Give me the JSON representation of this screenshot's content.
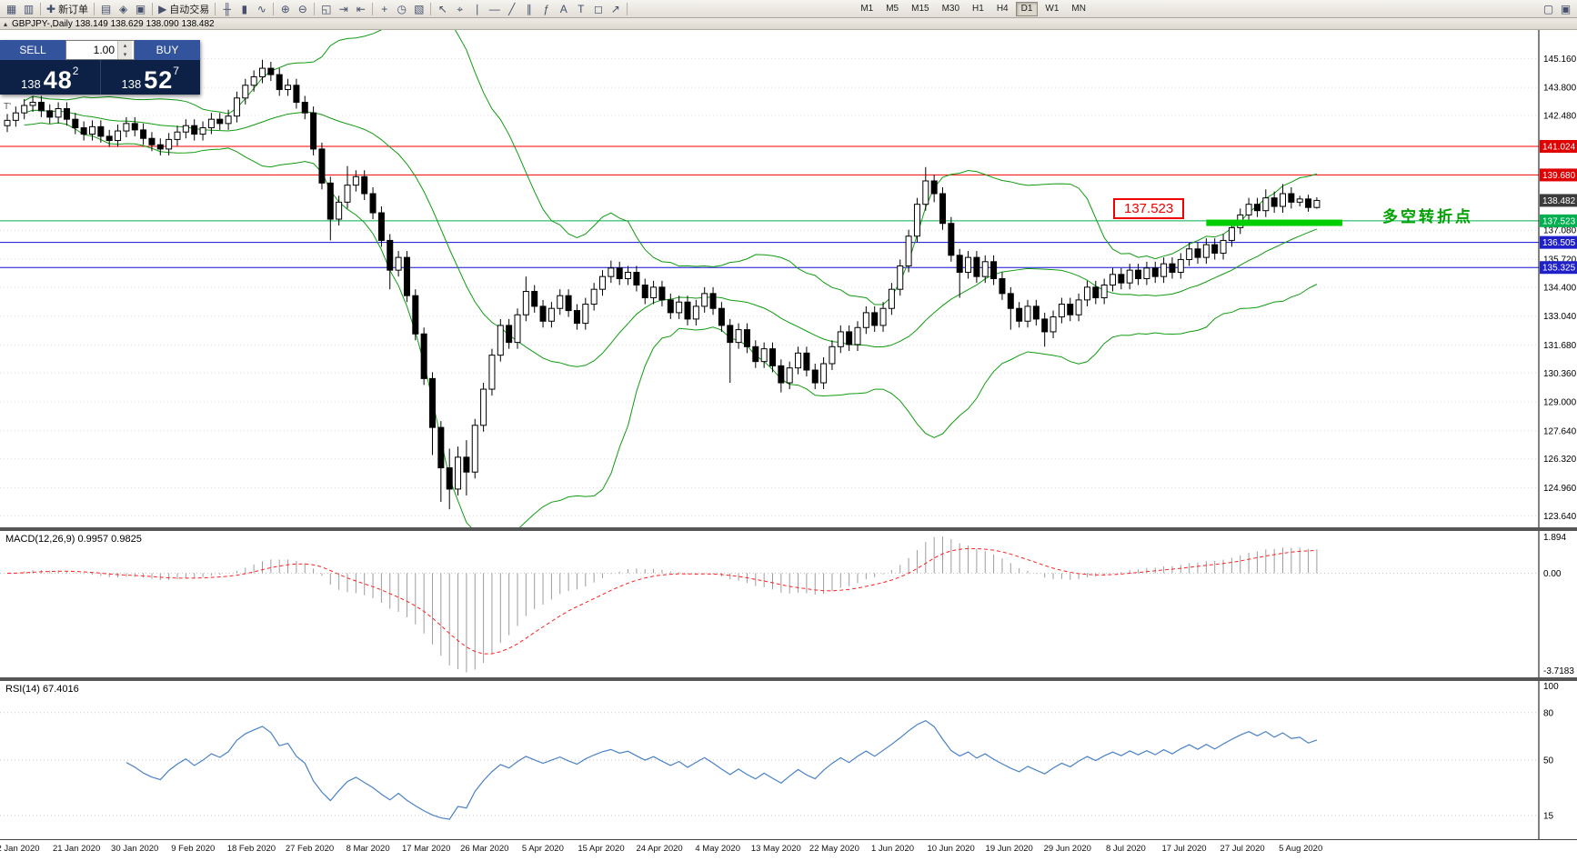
{
  "toolbar": {
    "groups": [
      {
        "items": [
          {
            "name": "new-chart-icon",
            "glyph": "▦"
          },
          {
            "name": "profiles-icon",
            "glyph": "▥"
          }
        ]
      },
      {
        "items": [
          {
            "name": "new-order-button",
            "glyph": "✚",
            "label": "新订单"
          }
        ]
      },
      {
        "items": [
          {
            "name": "market-watch-icon",
            "glyph": "▤"
          },
          {
            "name": "navigator-icon",
            "glyph": "◈"
          },
          {
            "name": "terminal-icon",
            "glyph": "▣"
          }
        ]
      },
      {
        "items": [
          {
            "name": "autotrade-button",
            "glyph": "▶",
            "label": "自动交易"
          }
        ]
      },
      {
        "items": [
          {
            "name": "bars-icon",
            "glyph": "╫"
          },
          {
            "name": "candles-icon",
            "glyph": "▮"
          },
          {
            "name": "line-chart-icon",
            "glyph": "∿"
          }
        ]
      },
      {
        "items": [
          {
            "name": "zoom-in-icon",
            "glyph": "⊕"
          },
          {
            "name": "zoom-out-icon",
            "glyph": "⊖"
          }
        ]
      },
      {
        "items": [
          {
            "name": "tile-windows-icon",
            "glyph": "◱"
          },
          {
            "name": "auto-scroll-icon",
            "glyph": "⇥"
          },
          {
            "name": "chart-shift-icon",
            "glyph": "⇤"
          }
        ]
      },
      {
        "items": [
          {
            "name": "indicators-icon",
            "glyph": "+"
          },
          {
            "name": "periods-icon",
            "glyph": "◷"
          },
          {
            "name": "templates-icon",
            "glyph": "▧"
          }
        ]
      },
      {
        "items": [
          {
            "name": "cursor-icon",
            "glyph": "↖"
          },
          {
            "name": "crosshair-icon",
            "glyph": "⌖"
          },
          {
            "name": "vline-icon",
            "glyph": "∣"
          },
          {
            "name": "hline-icon",
            "glyph": "—"
          },
          {
            "name": "trendline-icon",
            "glyph": "╱"
          },
          {
            "name": "channel-icon",
            "glyph": "∥"
          },
          {
            "name": "fibonacci-icon",
            "glyph": "ƒ"
          },
          {
            "name": "text-icon",
            "glyph": "A"
          },
          {
            "name": "label-icon",
            "glyph": "T"
          },
          {
            "name": "shapes-icon",
            "glyph": "◻"
          },
          {
            "name": "arrows-icon",
            "glyph": "↗"
          }
        ]
      }
    ],
    "timeframes": [
      "M1",
      "M5",
      "M15",
      "M30",
      "H1",
      "H4",
      "D1",
      "W1",
      "MN"
    ],
    "active_timeframe": "D1",
    "right_items": [
      {
        "name": "new-window-icon",
        "glyph": "▢"
      },
      {
        "name": "screenshot-icon",
        "glyph": "▣"
      }
    ]
  },
  "chart": {
    "collapse_icon": "▴",
    "title_text": "GBPJPY-,Daily  138.149 138.629 138.090 138.482",
    "one_click_label": "T'"
  },
  "trade_panel": {
    "sell_label": "SELL",
    "buy_label": "BUY",
    "volume": "1.00",
    "spin_up": "▴",
    "spin_down": "▾",
    "sell_price_main": "138",
    "sell_price_pips": "48",
    "sell_price_point": "2",
    "buy_price_main": "138",
    "buy_price_pips": "52",
    "buy_price_point": "7"
  },
  "annotations": {
    "price_box_label": "137.523",
    "turning_point_text": "多空转折点",
    "thick_line": {
      "from_bar": 141,
      "to_bar": 157,
      "value": 137.45,
      "color": "#00ce00"
    }
  },
  "colors": {
    "bollinger": "#119b11",
    "rsi_line": "#4a82c4",
    "macd_histogram": "#9c9c9c",
    "macd_signal": "#ff2020",
    "grid": "#dcdcdc",
    "bull_body": "#ffffff",
    "bear_body": "#000000"
  },
  "chart_data": {
    "type": "candlestick",
    "symbol": "GBPJPY-",
    "timeframe": "Daily",
    "ohlc_current": [
      138.149,
      138.629,
      138.09,
      138.482
    ],
    "ylim": [
      123.64,
      145.16
    ],
    "y_ticks": [
      145.16,
      143.8,
      142.48,
      137.08,
      135.72,
      134.4,
      133.04,
      131.68,
      130.36,
      129.0,
      127.64,
      126.32,
      124.96,
      123.64
    ],
    "levels": [
      {
        "label": "141.024",
        "value": 141.024,
        "line_color": "#f40000",
        "badge_color": "#e00000",
        "line": true
      },
      {
        "label": "139.680",
        "value": 139.68,
        "line_color": "#f40000",
        "badge_color": "#e00000",
        "line": true
      },
      {
        "label": "138.482",
        "value": 138.482,
        "line_color": null,
        "badge_color": "#3c3c3c",
        "line": false
      },
      {
        "label": "137.523",
        "value": 137.523,
        "line_color": "#00b050",
        "badge_color": "#00b050",
        "line": true
      },
      {
        "label": "136.505",
        "value": 136.505,
        "line_color": "#1111d0",
        "badge_color": "#2020c8",
        "line": true
      },
      {
        "label": "135.325",
        "value": 135.325,
        "line_color": "#1111d0",
        "badge_color": "#2020c8",
        "line": true
      }
    ],
    "x_labels": [
      "2 Jan 2020",
      "21 Jan 2020",
      "30 Jan 2020",
      "9 Feb 2020",
      "18 Feb 2020",
      "27 Feb 2020",
      "8 Mar 2020",
      "17 Mar 2020",
      "26 Mar 2020",
      "5 Apr 2020",
      "15 Apr 2020",
      "24 Apr 2020",
      "4 May 2020",
      "13 May 2020",
      "22 May 2020",
      "1 Jun 2020",
      "10 Jun 2020",
      "19 Jun 2020",
      "29 Jun 2020",
      "8 Jul 2020",
      "17 Jul 2020",
      "27 Jul 2020",
      "5 Aug 2020"
    ],
    "overlays": {
      "bollinger_period": 20,
      "bollinger_deviation": 2
    },
    "subcharts": [
      {
        "type": "macd",
        "label": "MACD(12,26,9) 0.9957 0.9825",
        "params": [
          12,
          26,
          9
        ],
        "values": [
          0.9957,
          0.9825
        ],
        "y_labels": [
          "1.894",
          "0.00",
          "-3.7183"
        ]
      },
      {
        "type": "rsi",
        "label": "RSI(14) 67.4016",
        "period": 14,
        "value": 67.4016,
        "levels": [
          100,
          80,
          50,
          15
        ]
      }
    ],
    "candles": [
      [
        142.0,
        142.55,
        141.7,
        142.25
      ],
      [
        142.25,
        142.9,
        141.95,
        142.6
      ],
      [
        142.6,
        143.25,
        142.3,
        142.95
      ],
      [
        142.95,
        143.4,
        142.65,
        143.1
      ],
      [
        143.1,
        143.4,
        142.4,
        142.7
      ],
      [
        142.7,
        143.0,
        142.1,
        142.4
      ],
      [
        142.4,
        143.1,
        142.1,
        142.8
      ],
      [
        142.8,
        143.1,
        142.0,
        142.3
      ],
      [
        142.3,
        142.6,
        141.6,
        141.9
      ],
      [
        141.9,
        142.2,
        141.3,
        141.6
      ],
      [
        141.6,
        142.25,
        141.3,
        141.95
      ],
      [
        141.95,
        142.25,
        141.2,
        141.5
      ],
      [
        141.5,
        141.8,
        141.0,
        141.3
      ],
      [
        141.3,
        142.05,
        141.0,
        141.75
      ],
      [
        141.75,
        142.4,
        141.45,
        142.1
      ],
      [
        142.1,
        142.4,
        141.5,
        141.8
      ],
      [
        141.8,
        142.1,
        141.1,
        141.4
      ],
      [
        141.4,
        141.7,
        140.8,
        141.1
      ],
      [
        141.1,
        141.4,
        140.6,
        140.9
      ],
      [
        140.9,
        141.65,
        140.6,
        141.35
      ],
      [
        141.35,
        142.0,
        141.05,
        141.7
      ],
      [
        141.7,
        142.3,
        141.4,
        142.0
      ],
      [
        142.0,
        142.3,
        141.3,
        141.6
      ],
      [
        141.6,
        142.2,
        141.3,
        141.9
      ],
      [
        141.9,
        142.6,
        141.6,
        142.3
      ],
      [
        142.3,
        142.6,
        141.8,
        142.1
      ],
      [
        142.1,
        142.75,
        141.8,
        142.45
      ],
      [
        142.45,
        143.6,
        142.15,
        143.3
      ],
      [
        143.3,
        144.2,
        143.0,
        143.9
      ],
      [
        143.9,
        144.6,
        143.6,
        144.3
      ],
      [
        144.3,
        145.1,
        144.0,
        144.7
      ],
      [
        144.7,
        145.0,
        144.1,
        144.4
      ],
      [
        144.4,
        144.7,
        143.4,
        143.7
      ],
      [
        143.7,
        144.2,
        143.4,
        143.9
      ],
      [
        143.9,
        144.2,
        142.8,
        143.1
      ],
      [
        143.1,
        143.4,
        142.3,
        142.6
      ],
      [
        142.6,
        142.9,
        140.6,
        140.9
      ],
      [
        140.9,
        141.2,
        139.0,
        139.3
      ],
      [
        139.3,
        139.6,
        136.6,
        137.6
      ],
      [
        137.6,
        138.7,
        137.3,
        138.4
      ],
      [
        138.4,
        140.1,
        138.1,
        139.2
      ],
      [
        139.2,
        139.9,
        138.9,
        139.6
      ],
      [
        139.6,
        139.9,
        138.5,
        138.8
      ],
      [
        138.8,
        139.1,
        137.6,
        137.9
      ],
      [
        137.9,
        138.2,
        136.3,
        136.6
      ],
      [
        136.6,
        136.9,
        134.3,
        135.2
      ],
      [
        135.2,
        136.1,
        134.9,
        135.8
      ],
      [
        135.8,
        136.1,
        133.7,
        134.0
      ],
      [
        134.0,
        134.3,
        131.9,
        132.2
      ],
      [
        132.2,
        132.5,
        129.8,
        130.1
      ],
      [
        130.1,
        130.4,
        126.5,
        127.8
      ],
      [
        127.8,
        128.1,
        124.3,
        125.9
      ],
      [
        125.9,
        126.8,
        123.95,
        124.9
      ],
      [
        124.9,
        126.9,
        124.6,
        126.4
      ],
      [
        126.4,
        127.2,
        124.6,
        125.7
      ],
      [
        125.7,
        128.2,
        125.4,
        127.9
      ],
      [
        127.9,
        129.9,
        127.6,
        129.6
      ],
      [
        129.6,
        131.5,
        129.3,
        131.2
      ],
      [
        131.2,
        132.9,
        130.9,
        132.6
      ],
      [
        132.6,
        132.9,
        131.5,
        131.8
      ],
      [
        131.8,
        133.4,
        131.5,
        133.1
      ],
      [
        133.1,
        134.9,
        132.8,
        134.2
      ],
      [
        134.2,
        134.5,
        133.2,
        133.5
      ],
      [
        133.5,
        133.8,
        132.5,
        132.8
      ],
      [
        132.8,
        133.7,
        132.5,
        133.4
      ],
      [
        133.4,
        134.3,
        133.1,
        134.0
      ],
      [
        134.0,
        134.3,
        133.0,
        133.3
      ],
      [
        133.3,
        133.6,
        132.4,
        132.7
      ],
      [
        132.7,
        133.9,
        132.4,
        133.6
      ],
      [
        133.6,
        134.6,
        133.3,
        134.3
      ],
      [
        134.3,
        135.2,
        134.0,
        134.9
      ],
      [
        134.9,
        135.65,
        134.6,
        135.3
      ],
      [
        135.3,
        135.6,
        134.5,
        134.8
      ],
      [
        134.8,
        135.4,
        134.5,
        135.1
      ],
      [
        135.1,
        135.4,
        134.2,
        134.5
      ],
      [
        134.5,
        134.8,
        133.6,
        133.9
      ],
      [
        133.9,
        134.7,
        133.6,
        134.4
      ],
      [
        134.4,
        134.7,
        133.5,
        133.8
      ],
      [
        133.8,
        134.1,
        132.9,
        133.2
      ],
      [
        133.2,
        134.0,
        132.9,
        133.7
      ],
      [
        133.7,
        134.0,
        132.6,
        132.9
      ],
      [
        132.9,
        133.8,
        132.6,
        133.5
      ],
      [
        133.5,
        134.4,
        133.2,
        134.1
      ],
      [
        134.1,
        134.4,
        133.1,
        133.4
      ],
      [
        133.4,
        133.7,
        132.3,
        132.6
      ],
      [
        132.6,
        132.9,
        129.9,
        131.8
      ],
      [
        131.8,
        132.7,
        131.5,
        132.4
      ],
      [
        132.4,
        132.7,
        131.3,
        131.6
      ],
      [
        131.6,
        131.9,
        130.6,
        130.9
      ],
      [
        130.9,
        131.8,
        130.6,
        131.5
      ],
      [
        131.5,
        131.8,
        130.4,
        130.7
      ],
      [
        130.7,
        131.0,
        129.45,
        129.9
      ],
      [
        129.9,
        130.9,
        129.6,
        130.6
      ],
      [
        130.6,
        131.6,
        130.3,
        131.3
      ],
      [
        131.3,
        131.6,
        130.2,
        130.5
      ],
      [
        130.5,
        130.8,
        129.6,
        129.9
      ],
      [
        129.9,
        131.1,
        129.6,
        130.8
      ],
      [
        130.8,
        131.9,
        130.5,
        131.6
      ],
      [
        131.6,
        132.6,
        131.3,
        132.3
      ],
      [
        132.3,
        132.6,
        131.4,
        131.7
      ],
      [
        131.7,
        132.8,
        131.4,
        132.5
      ],
      [
        132.5,
        133.5,
        132.2,
        133.2
      ],
      [
        133.2,
        133.5,
        132.3,
        132.6
      ],
      [
        132.6,
        133.7,
        132.3,
        133.4
      ],
      [
        133.4,
        134.6,
        133.1,
        134.3
      ],
      [
        134.3,
        135.7,
        134.0,
        135.4
      ],
      [
        135.4,
        137.1,
        135.1,
        136.8
      ],
      [
        136.8,
        138.6,
        136.5,
        138.3
      ],
      [
        138.3,
        140.05,
        138.0,
        139.4
      ],
      [
        139.4,
        139.7,
        138.4,
        138.8
      ],
      [
        138.8,
        139.1,
        137.1,
        137.4
      ],
      [
        137.4,
        137.7,
        135.6,
        135.9
      ],
      [
        135.9,
        136.2,
        133.9,
        135.1
      ],
      [
        135.1,
        136.1,
        134.8,
        135.8
      ],
      [
        135.8,
        136.1,
        134.6,
        134.9
      ],
      [
        134.9,
        135.9,
        134.6,
        135.6
      ],
      [
        135.6,
        135.9,
        134.5,
        134.8
      ],
      [
        134.8,
        135.1,
        133.8,
        134.1
      ],
      [
        134.1,
        134.4,
        132.4,
        133.4
      ],
      [
        133.4,
        133.7,
        132.5,
        132.8
      ],
      [
        132.8,
        133.8,
        132.5,
        133.5
      ],
      [
        133.5,
        133.8,
        132.6,
        132.9
      ],
      [
        132.9,
        133.2,
        131.6,
        132.3
      ],
      [
        132.3,
        133.3,
        132.0,
        133.0
      ],
      [
        133.0,
        133.9,
        132.7,
        133.6
      ],
      [
        133.6,
        133.9,
        132.8,
        133.1
      ],
      [
        133.1,
        134.1,
        132.8,
        133.8
      ],
      [
        133.8,
        134.7,
        133.5,
        134.4
      ],
      [
        134.4,
        134.7,
        133.6,
        133.9
      ],
      [
        133.9,
        134.8,
        133.6,
        134.5
      ],
      [
        134.5,
        135.3,
        134.2,
        135.0
      ],
      [
        135.0,
        135.3,
        134.3,
        134.6
      ],
      [
        134.6,
        135.5,
        134.3,
        135.2
      ],
      [
        135.2,
        135.5,
        134.5,
        134.8
      ],
      [
        134.8,
        135.6,
        134.5,
        135.3
      ],
      [
        135.3,
        135.6,
        134.6,
        134.9
      ],
      [
        134.9,
        135.8,
        134.6,
        135.5
      ],
      [
        135.5,
        135.8,
        134.8,
        135.1
      ],
      [
        135.1,
        136.0,
        134.8,
        135.7
      ],
      [
        135.7,
        136.5,
        135.4,
        136.2
      ],
      [
        136.2,
        136.5,
        135.5,
        135.8
      ],
      [
        135.8,
        136.7,
        135.5,
        136.4
      ],
      [
        136.4,
        136.7,
        135.7,
        136.0
      ],
      [
        136.0,
        136.9,
        135.7,
        136.6
      ],
      [
        136.6,
        137.5,
        136.3,
        137.2
      ],
      [
        137.2,
        138.1,
        136.9,
        137.8
      ],
      [
        137.8,
        138.6,
        137.5,
        138.3
      ],
      [
        138.3,
        138.6,
        137.7,
        138.0
      ],
      [
        138.0,
        139.0,
        137.7,
        138.6
      ],
      [
        138.6,
        138.9,
        137.9,
        138.2
      ],
      [
        138.2,
        139.25,
        137.9,
        138.8
      ],
      [
        138.8,
        139.1,
        138.1,
        138.4
      ],
      [
        138.4,
        138.7,
        138.2,
        138.55
      ],
      [
        138.55,
        138.75,
        137.95,
        138.15
      ],
      [
        138.149,
        138.629,
        138.09,
        138.482
      ]
    ]
  }
}
